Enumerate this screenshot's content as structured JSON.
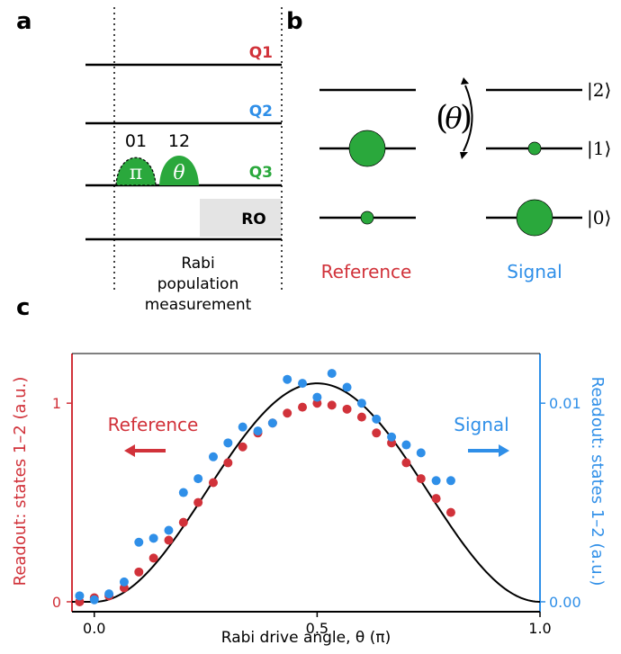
{
  "panels": {
    "a": "a",
    "b": "b",
    "c": "c"
  },
  "panel_a": {
    "qubits": [
      "Q1",
      "Q2",
      "Q3"
    ],
    "qubit_colors": [
      "#d1323a",
      "#2f8fe8",
      "#2aa83c"
    ],
    "pulse_transitions": [
      "01",
      "12"
    ],
    "pulse_symbols": [
      "π",
      "θ"
    ],
    "readout_label": "RO",
    "caption_lines": [
      "Rabi",
      "population",
      "measurement"
    ]
  },
  "panel_b": {
    "levels": [
      "|2⟩",
      "|1⟩",
      "|0⟩"
    ],
    "drive_symbol": "θ",
    "reference_label": "Reference",
    "signal_label": "Signal",
    "reference_color": "#d1323a",
    "signal_color": "#2f8fe8",
    "population_color": "#2aa83c"
  },
  "chart_data": {
    "type": "scatter",
    "xlabel": "Rabi drive angle, θ (π)",
    "ylabel_left": "Readout: states 1–2 (a.u.)",
    "ylabel_right": "Readout: states 1–2 (a.u.)",
    "xlim": [
      -0.05,
      1.0
    ],
    "xticks": [
      "0.0",
      "0.5",
      "1.0"
    ],
    "xtick_values": [
      0.0,
      0.5,
      1.0
    ],
    "ylim_left": [
      -0.05,
      1.25
    ],
    "yticks_left": [
      "0",
      "1"
    ],
    "ytick_values_left": [
      0,
      1
    ],
    "ylim_right": [
      -0.0005,
      0.0125
    ],
    "yticks_right": [
      "0.00",
      "0.01"
    ],
    "ytick_values_right": [
      0.0,
      0.01
    ],
    "annotations": {
      "reference": "Reference",
      "signal": "Signal"
    },
    "series": [
      {
        "name": "Reference",
        "axis": "left",
        "color": "#d1323a",
        "x": [
          -0.033,
          0.0,
          0.033,
          0.067,
          0.1,
          0.133,
          0.167,
          0.2,
          0.233,
          0.267,
          0.3,
          0.333,
          0.367,
          0.4,
          0.433,
          0.467,
          0.5,
          0.533,
          0.567,
          0.6,
          0.633,
          0.667,
          0.7,
          0.733,
          0.767,
          0.8
        ],
        "y": [
          0.0,
          0.02,
          0.03,
          0.07,
          0.15,
          0.22,
          0.31,
          0.4,
          0.5,
          0.6,
          0.7,
          0.78,
          0.85,
          0.9,
          0.95,
          0.98,
          1.0,
          0.99,
          0.97,
          0.93,
          0.85,
          0.8,
          0.7,
          0.62,
          0.52,
          0.45
        ]
      },
      {
        "name": "Signal",
        "axis": "right",
        "color": "#2f8fe8",
        "x": [
          -0.033,
          0.0,
          0.033,
          0.067,
          0.1,
          0.133,
          0.167,
          0.2,
          0.233,
          0.267,
          0.3,
          0.333,
          0.367,
          0.4,
          0.433,
          0.467,
          0.5,
          0.533,
          0.567,
          0.6,
          0.633,
          0.667,
          0.7,
          0.733,
          0.767,
          0.8
        ],
        "y": [
          0.0003,
          0.0001,
          0.0004,
          0.001,
          0.003,
          0.0032,
          0.0036,
          0.0055,
          0.0062,
          0.0073,
          0.008,
          0.0088,
          0.0086,
          0.009,
          0.0112,
          0.011,
          0.0103,
          0.0115,
          0.0108,
          0.01,
          0.0092,
          0.0083,
          0.0079,
          0.0075,
          0.0061,
          0.0061
        ]
      },
      {
        "name": "",
        "type": "line",
        "axis": "left",
        "color": "#000000",
        "amplitude": 1.1,
        "x_range": [
          -0.05,
          1.0
        ]
      }
    ]
  }
}
